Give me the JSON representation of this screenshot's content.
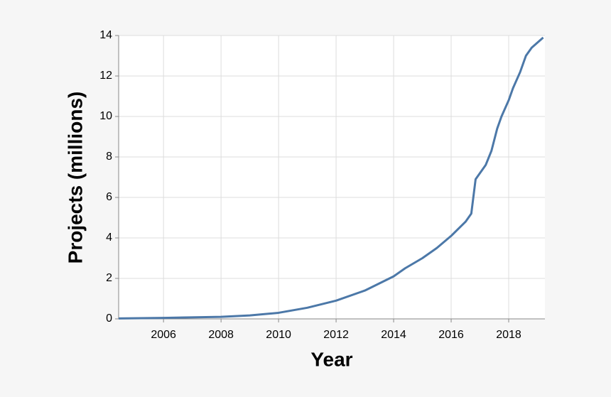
{
  "chart_data": {
    "type": "line",
    "x_label": "Year",
    "y_label": "Projects (millions)",
    "x": [
      2004.44,
      2006,
      2008,
      2009,
      2010,
      2011,
      2012,
      2013,
      2014,
      2014.4,
      2015,
      2015.5,
      2016,
      2016.5,
      2016.7,
      2016.85,
      2017.2,
      2017.4,
      2017.6,
      2017.75,
      2018,
      2018.15,
      2018.4,
      2018.6,
      2018.8,
      2019.2
    ],
    "series": [
      {
        "color": "#4c78a8",
        "values": [
          0.02,
          0.05,
          0.1,
          0.17,
          0.3,
          0.55,
          0.9,
          1.4,
          2.1,
          2.5,
          3.0,
          3.5,
          4.1,
          4.8,
          5.2,
          6.9,
          7.6,
          8.3,
          9.4,
          10.0,
          10.8,
          11.4,
          12.2,
          13.0,
          13.4,
          13.9
        ]
      }
    ],
    "xlim": [
      2004.44,
      2019.26
    ],
    "xticks": [
      2006,
      2008,
      2010,
      2012,
      2014,
      2016,
      2018
    ],
    "ylim": [
      0,
      14
    ],
    "yticks": [
      0,
      2,
      4,
      6,
      8,
      10,
      12,
      14
    ],
    "grid": true
  }
}
